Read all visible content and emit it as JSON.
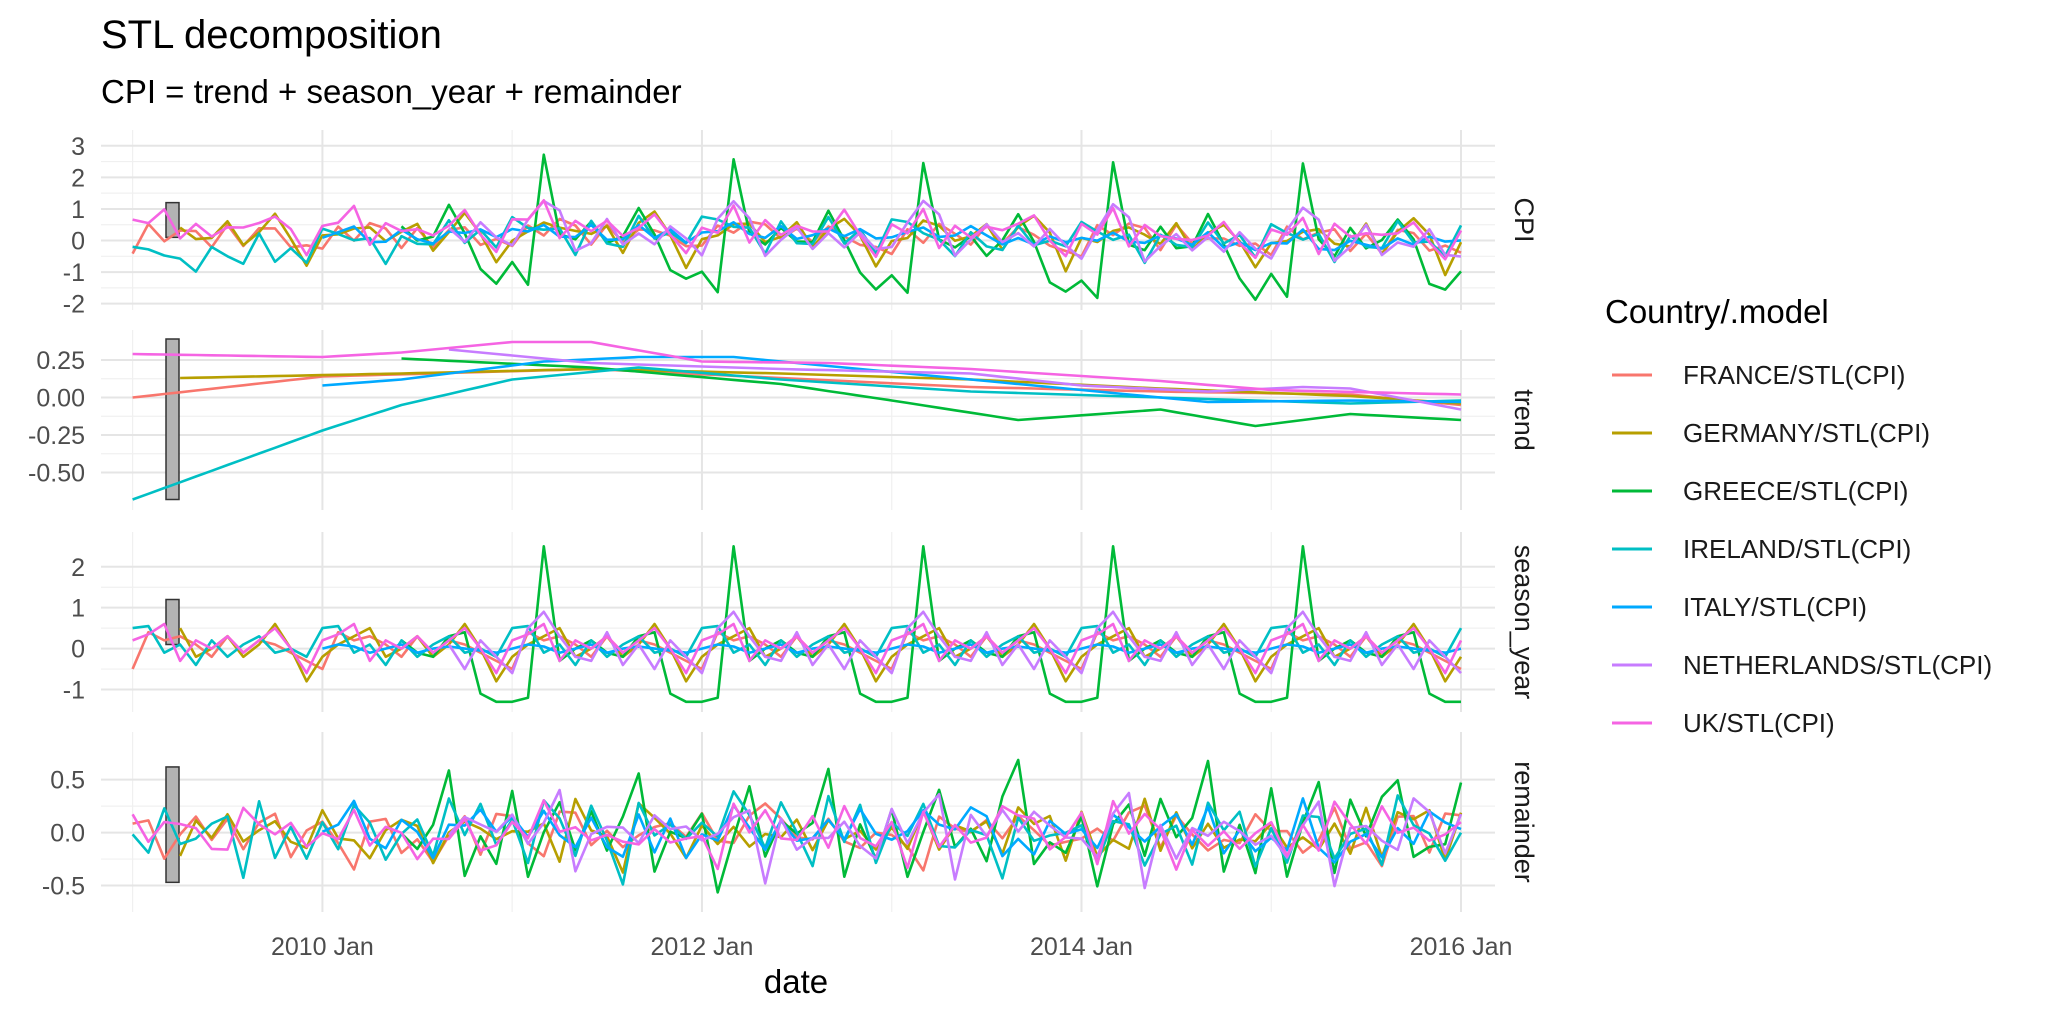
{
  "chart_data": {
    "type": "line",
    "title": "STL decomposition",
    "subtitle": "CPI = trend + season_year + remainder",
    "xlabel": "date",
    "x_ticks": [
      "2010 Jan",
      "2012 Jan",
      "2014 Jan",
      "2016 Jan"
    ],
    "x_range": [
      "2008-11",
      "2016-03"
    ],
    "x_start": "2009-01",
    "x_end": "2016-01",
    "legend": {
      "title": "Country/.model",
      "position": "right"
    },
    "grid": true,
    "panels": [
      {
        "name": "CPI",
        "ylim": [
          -2.2,
          3.5
        ],
        "yticks": [
          3,
          2,
          1,
          0,
          -1,
          -2
        ],
        "scale_bar": [
          0.1,
          1.2
        ]
      },
      {
        "name": "trend",
        "ylim": [
          -0.75,
          0.45
        ],
        "yticks": [
          0.25,
          0.0,
          -0.25,
          -0.5
        ],
        "scale_bar": [
          -0.68,
          0.39
        ]
      },
      {
        "name": "season_year",
        "ylim": [
          -1.55,
          2.85
        ],
        "yticks": [
          2,
          1,
          0,
          -1
        ],
        "scale_bar": [
          0.1,
          1.2
        ]
      },
      {
        "name": "remainder",
        "ylim": [
          -0.75,
          0.95
        ],
        "yticks": [
          0.5,
          0.0,
          -0.5
        ],
        "scale_bar": [
          -0.47,
          0.62
        ]
      }
    ],
    "series": [
      {
        "name": "FRANCE/STL(CPI)",
        "color": "#F8766D",
        "start": "2009-01",
        "trend_knots": [
          [
            "2009-01",
            0.0
          ],
          [
            "2010-01",
            0.14
          ],
          [
            "2011-06",
            0.19
          ],
          [
            "2012-06",
            0.13
          ],
          [
            "2013-06",
            0.07
          ],
          [
            "2014-06",
            0.04
          ],
          [
            "2015-06",
            0.02
          ],
          [
            "2016-01",
            -0.05
          ]
        ],
        "season": [
          -0.5,
          0.4,
          0.2,
          0.3,
          0.1,
          -0.2,
          0.3,
          -0.1,
          0.2,
          0.1,
          -0.1,
          -0.3
        ],
        "remainder": [
          0.1,
          0.05,
          -0.3,
          0.1,
          0.15,
          -0.05,
          0.1,
          -0.2,
          0.0,
          0.1,
          -0.1,
          0.05
        ]
      },
      {
        "name": "GERMANY/STL(CPI)",
        "color": "#B79F00",
        "start": "2009-04",
        "trend_knots": [
          [
            "2009-04",
            0.13
          ],
          [
            "2010-06",
            0.16
          ],
          [
            "2011-06",
            0.19
          ],
          [
            "2012-06",
            0.16
          ],
          [
            "2013-06",
            0.12
          ],
          [
            "2014-06",
            0.06
          ],
          [
            "2015-06",
            0.01
          ],
          [
            "2016-01",
            -0.04
          ]
        ],
        "season": [
          -0.2,
          0.1,
          0.3,
          0.5,
          -0.2,
          0.0,
          0.3,
          -0.2,
          0.1,
          0.6,
          0.0,
          -0.8
        ],
        "remainder": [
          0.05,
          -0.1,
          0.1,
          -0.35,
          0.2,
          -0.05,
          0.1,
          -0.3,
          0.15,
          0.0,
          0.1,
          -0.15
        ]
      },
      {
        "name": "GREECE/STL(CPI)",
        "color": "#00BA38",
        "start": "2010-06",
        "trend_knots": [
          [
            "2010-06",
            0.26
          ],
          [
            "2011-06",
            0.2
          ],
          [
            "2012-06",
            0.09
          ],
          [
            "2013-01",
            -0.02
          ],
          [
            "2013-09",
            -0.15
          ],
          [
            "2014-06",
            -0.08
          ],
          [
            "2014-12",
            -0.19
          ],
          [
            "2015-06",
            -0.11
          ],
          [
            "2016-01",
            -0.15
          ]
        ],
        "season": [
          -1.3,
          -1.2,
          2.5,
          -0.3,
          0.0,
          0.2,
          -0.1,
          -0.2,
          0.3,
          0.4,
          -1.1,
          -1.3
        ],
        "remainder": [
          0.4,
          -0.6,
          0.1,
          0.5,
          -0.3,
          0.2,
          -0.2,
          0.3,
          0.8,
          -0.5,
          0.0,
          -0.3
        ]
      },
      {
        "name": "IRELAND/STL(CPI)",
        "color": "#00BFC4",
        "start": "2009-01",
        "trend_knots": [
          [
            "2009-01",
            -0.68
          ],
          [
            "2009-07",
            -0.45
          ],
          [
            "2010-01",
            -0.22
          ],
          [
            "2010-06",
            -0.05
          ],
          [
            "2011-01",
            0.12
          ],
          [
            "2011-09",
            0.2
          ],
          [
            "2012-06",
            0.12
          ],
          [
            "2013-06",
            0.04
          ],
          [
            "2014-06",
            0.0
          ],
          [
            "2015-06",
            -0.04
          ],
          [
            "2016-01",
            -0.02
          ]
        ],
        "season": [
          0.5,
          0.55,
          -0.1,
          0.1,
          -0.4,
          0.2,
          -0.2,
          0.1,
          0.3,
          -0.1,
          0.0,
          -0.2
        ],
        "remainder": [
          0.1,
          -0.2,
          0.35,
          0.0,
          -0.3,
          0.2,
          0.1,
          -0.45,
          0.3,
          -0.1,
          0.15,
          -0.2
        ]
      },
      {
        "name": "ITALY/STL(CPI)",
        "color": "#00A9FF",
        "start": "2010-01",
        "trend_knots": [
          [
            "2010-01",
            0.08
          ],
          [
            "2010-06",
            0.12
          ],
          [
            "2011-03",
            0.24
          ],
          [
            "2011-09",
            0.27
          ],
          [
            "2012-03",
            0.27
          ],
          [
            "2013-01",
            0.17
          ],
          [
            "2014-01",
            0.05
          ],
          [
            "2014-09",
            -0.03
          ],
          [
            "2015-06",
            -0.02
          ],
          [
            "2016-01",
            -0.03
          ]
        ],
        "season": [
          0.0,
          0.1,
          0.05,
          -0.1,
          0.0,
          0.1,
          -0.1,
          0.0,
          0.05,
          0.0,
          -0.05,
          -0.1
        ],
        "remainder": [
          0.05,
          -0.1,
          0.25,
          0.0,
          -0.15,
          0.1,
          0.05,
          -0.2,
          0.15,
          -0.05,
          0.1,
          -0.1
        ]
      },
      {
        "name": "NETHERLANDS/STL(CPI)",
        "color": "#C77CFF",
        "start": "2010-09",
        "trend_knots": [
          [
            "2010-09",
            0.32
          ],
          [
            "2011-06",
            0.23
          ],
          [
            "2012-06",
            0.19
          ],
          [
            "2013-06",
            0.16
          ],
          [
            "2014-01",
            0.08
          ],
          [
            "2014-09",
            0.04
          ],
          [
            "2015-03",
            0.07
          ],
          [
            "2015-06",
            0.06
          ],
          [
            "2016-01",
            -0.08
          ]
        ],
        "season": [
          -0.6,
          0.5,
          0.9,
          0.3,
          -0.2,
          -0.3,
          0.4,
          -0.4,
          0.1,
          -0.5,
          0.2,
          -0.2
        ],
        "remainder": [
          0.1,
          -0.2,
          0.2,
          0.4,
          -0.6,
          0.2,
          -0.1,
          0.1,
          -0.2,
          0.3,
          0.05,
          -0.15
        ]
      },
      {
        "name": "UK/STL(CPI)",
        "color": "#F564E3",
        "start": "2009-01",
        "trend_knots": [
          [
            "2009-01",
            0.29
          ],
          [
            "2010-01",
            0.27
          ],
          [
            "2010-06",
            0.3
          ],
          [
            "2011-01",
            0.37
          ],
          [
            "2011-06",
            0.37
          ],
          [
            "2012-01",
            0.24
          ],
          [
            "2012-09",
            0.23
          ],
          [
            "2013-06",
            0.19
          ],
          [
            "2014-06",
            0.11
          ],
          [
            "2015-01",
            0.05
          ],
          [
            "2016-01",
            0.02
          ]
        ],
        "season": [
          0.2,
          0.35,
          0.6,
          -0.3,
          0.2,
          0.0,
          0.3,
          -0.1,
          0.2,
          0.5,
          0.0,
          -0.6
        ],
        "remainder": [
          0.15,
          -0.3,
          0.3,
          -0.1,
          0.2,
          0.0,
          -0.25,
          0.1,
          0.0,
          0.2,
          -0.1,
          0.05
        ]
      }
    ]
  }
}
